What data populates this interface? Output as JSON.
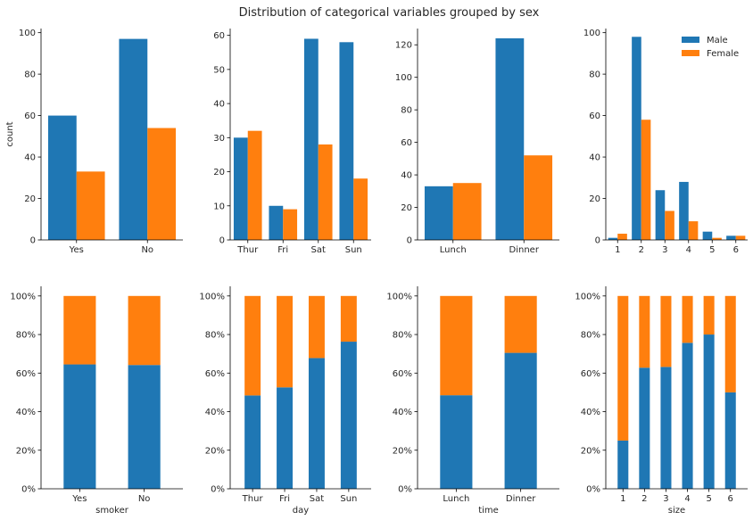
{
  "title": "Distribution of categorical variables grouped by sex",
  "colors": {
    "male": "#1f77b4",
    "female": "#ff7f0e"
  },
  "legend": {
    "placement": "top-right",
    "entries": [
      "Male",
      "Female"
    ]
  },
  "chart_data": [
    {
      "type": "bar",
      "panel": "count-smoker",
      "categories": [
        "Yes",
        "No"
      ],
      "series": [
        {
          "name": "Male",
          "values": [
            60,
            97
          ]
        },
        {
          "name": "Female",
          "values": [
            33,
            54
          ]
        }
      ],
      "ylim": [
        0,
        102
      ],
      "yticks": [
        0,
        20,
        40,
        60,
        80,
        100
      ],
      "ylabel": "count",
      "xlabel": ""
    },
    {
      "type": "bar",
      "panel": "count-day",
      "categories": [
        "Thur",
        "Fri",
        "Sat",
        "Sun"
      ],
      "series": [
        {
          "name": "Male",
          "values": [
            30,
            10,
            59,
            58
          ]
        },
        {
          "name": "Female",
          "values": [
            32,
            9,
            28,
            18
          ]
        }
      ],
      "ylim": [
        0,
        62
      ],
      "yticks": [
        0,
        10,
        20,
        30,
        40,
        50,
        60
      ],
      "ylabel": "",
      "xlabel": ""
    },
    {
      "type": "bar",
      "panel": "count-time",
      "categories": [
        "Lunch",
        "Dinner"
      ],
      "series": [
        {
          "name": "Male",
          "values": [
            33,
            124
          ]
        },
        {
          "name": "Female",
          "values": [
            35,
            52
          ]
        }
      ],
      "ylim": [
        0,
        130
      ],
      "yticks": [
        0,
        20,
        40,
        60,
        80,
        100,
        120
      ],
      "ylabel": "",
      "xlabel": ""
    },
    {
      "type": "bar",
      "panel": "count-size",
      "categories": [
        "1",
        "2",
        "3",
        "4",
        "5",
        "6"
      ],
      "series": [
        {
          "name": "Male",
          "values": [
            1,
            98,
            24,
            28,
            4,
            2
          ]
        },
        {
          "name": "Female",
          "values": [
            3,
            58,
            14,
            9,
            1,
            2
          ]
        }
      ],
      "ylim": [
        0,
        102
      ],
      "yticks": [
        0,
        20,
        40,
        60,
        80,
        100
      ],
      "ylabel": "",
      "xlabel": ""
    },
    {
      "type": "bar",
      "stacked": true,
      "panel": "pct-smoker",
      "categories": [
        "Yes",
        "No"
      ],
      "series": [
        {
          "name": "Male",
          "values": [
            64.5,
            64.2
          ]
        },
        {
          "name": "Female",
          "values": [
            35.5,
            35.8
          ]
        }
      ],
      "ylim": [
        0,
        105
      ],
      "yticks": [
        "0%",
        "20%",
        "40%",
        "60%",
        "80%",
        "100%"
      ],
      "ylabel": "",
      "xlabel": "smoker"
    },
    {
      "type": "bar",
      "stacked": true,
      "panel": "pct-day",
      "categories": [
        "Thur",
        "Fri",
        "Sat",
        "Sun"
      ],
      "series": [
        {
          "name": "Male",
          "values": [
            48.4,
            52.6,
            67.8,
            76.3
          ]
        },
        {
          "name": "Female",
          "values": [
            51.6,
            47.4,
            32.2,
            23.7
          ]
        }
      ],
      "ylim": [
        0,
        105
      ],
      "yticks": [
        "0%",
        "20%",
        "40%",
        "60%",
        "80%",
        "100%"
      ],
      "ylabel": "",
      "xlabel": "day"
    },
    {
      "type": "bar",
      "stacked": true,
      "panel": "pct-time",
      "categories": [
        "Lunch",
        "Dinner"
      ],
      "series": [
        {
          "name": "Male",
          "values": [
            48.5,
            70.5
          ]
        },
        {
          "name": "Female",
          "values": [
            51.5,
            29.5
          ]
        }
      ],
      "ylim": [
        0,
        105
      ],
      "yticks": [
        "0%",
        "20%",
        "40%",
        "60%",
        "80%",
        "100%"
      ],
      "ylabel": "",
      "xlabel": "time"
    },
    {
      "type": "bar",
      "stacked": true,
      "panel": "pct-size",
      "categories": [
        "1",
        "2",
        "3",
        "4",
        "5",
        "6"
      ],
      "series": [
        {
          "name": "Male",
          "values": [
            25,
            62.8,
            63.2,
            75.7,
            80,
            50
          ]
        },
        {
          "name": "Female",
          "values": [
            75,
            37.2,
            36.8,
            24.3,
            20,
            50
          ]
        }
      ],
      "ylim": [
        0,
        105
      ],
      "yticks": [
        "0%",
        "20%",
        "40%",
        "60%",
        "80%",
        "100%"
      ],
      "ylabel": "",
      "xlabel": "size"
    }
  ]
}
